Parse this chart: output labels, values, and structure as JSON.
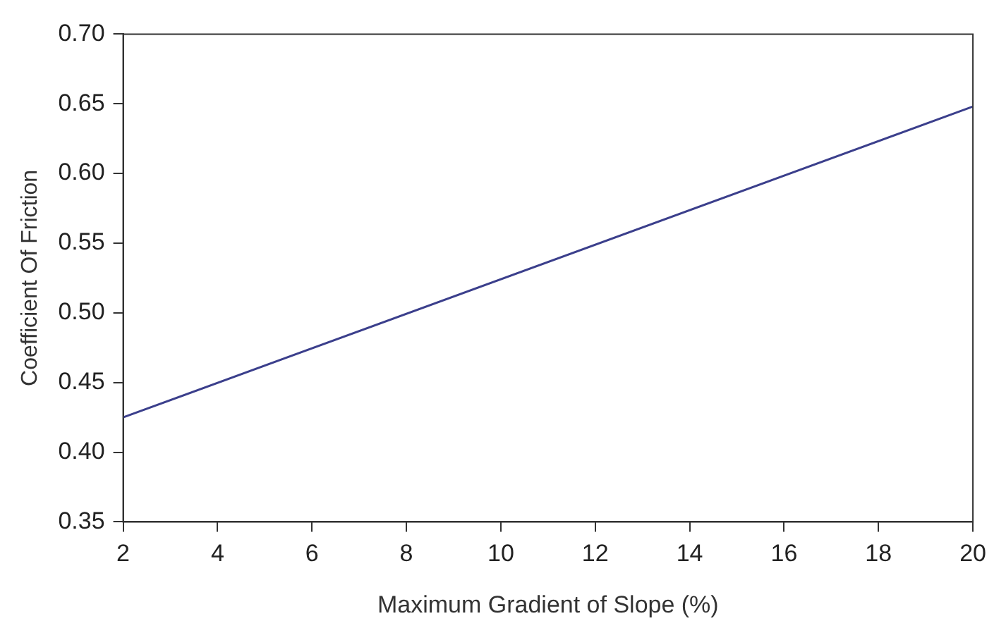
{
  "chart_data": {
    "type": "line",
    "xlabel": "Maximum Gradient of Slope (%)",
    "ylabel": "Coefficient Of Friction",
    "x": [
      2,
      20
    ],
    "series": [
      {
        "color": "#3b3f8c",
        "values": [
          0.425,
          0.648
        ]
      }
    ],
    "xlim": [
      2,
      20
    ],
    "xticks": [
      2,
      4,
      6,
      8,
      10,
      12,
      14,
      16,
      18,
      20
    ],
    "ylim": [
      0.35,
      0.7
    ],
    "yticks": [
      {
        "value": 0.35,
        "label": "0.35"
      },
      {
        "value": 0.4,
        "label": "0.40"
      },
      {
        "value": 0.45,
        "label": "0.45"
      },
      {
        "value": 0.5,
        "label": "0.50"
      },
      {
        "value": 0.55,
        "label": "0.55"
      },
      {
        "value": 0.6,
        "label": "0.60"
      },
      {
        "value": 0.65,
        "label": "0.65"
      },
      {
        "value": 0.7,
        "label": "0.70"
      }
    ],
    "grid": false,
    "legend": false,
    "marker": "none",
    "line_style": "solid"
  }
}
